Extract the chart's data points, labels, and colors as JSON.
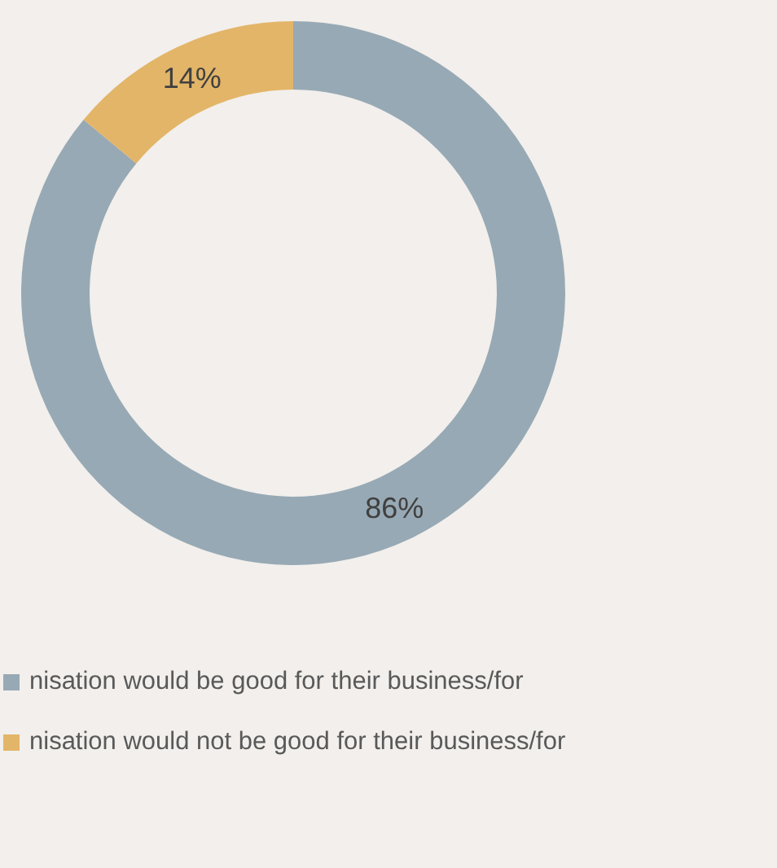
{
  "chart_data": {
    "type": "donut",
    "categories": [
      "nisation would be good for their business/for",
      "nisation would not be good for their business/for"
    ],
    "values": [
      86,
      14
    ],
    "colors": [
      "#97a9b4",
      "#e3b568"
    ],
    "value_labels": [
      "86%",
      "14%"
    ],
    "legend": "bottom"
  }
}
